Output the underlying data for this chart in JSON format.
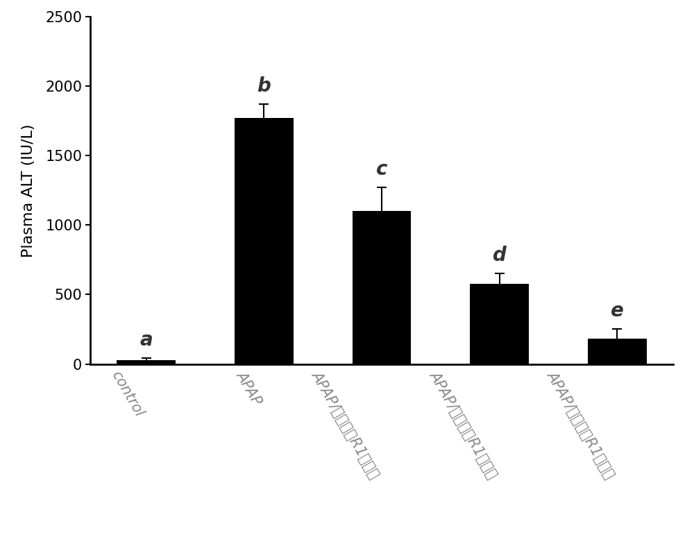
{
  "categories": [
    "control",
    "APAP",
    "APAP/三七皂苷R1低剂量",
    "APAP/三七皂苷R1中剂量",
    "APAP/三七皂苷R1高剂量"
  ],
  "values": [
    30,
    1770,
    1100,
    575,
    185
  ],
  "errors": [
    15,
    100,
    170,
    75,
    70
  ],
  "labels": [
    "a",
    "b",
    "c",
    "d",
    "e"
  ],
  "bar_color": "#000000",
  "ylabel": "Plasma ALT (IU/L)",
  "ylim": [
    0,
    2500
  ],
  "yticks": [
    0,
    500,
    1000,
    1500,
    2000,
    2500
  ],
  "label_fontsize": 16,
  "tick_fontsize": 15,
  "letter_fontsize": 20,
  "background_color": "#ffffff",
  "bar_width": 0.5,
  "xlabel_rotation": -60,
  "xlabel_color": "#888888",
  "letter_color": "#333333"
}
